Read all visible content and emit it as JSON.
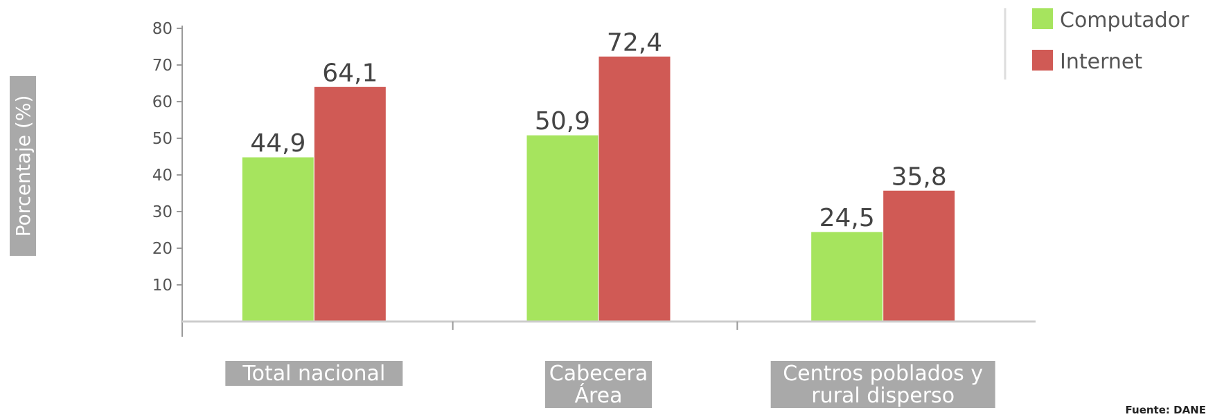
{
  "chart_data": {
    "type": "bar",
    "categories": [
      [
        "Total nacional"
      ],
      [
        "Cabecera",
        "Área"
      ],
      [
        "Centros poblados y",
        "rural disperso"
      ]
    ],
    "series": [
      {
        "name": "Computador",
        "values": [
          44.9,
          50.9,
          24.5
        ],
        "labels": [
          "44,9",
          "50,9",
          "24,5"
        ],
        "color": "#a6e45e"
      },
      {
        "name": "Internet",
        "values": [
          64.1,
          72.4,
          35.8
        ],
        "labels": [
          "64,1",
          "72,4",
          "35,8"
        ],
        "color": "#d05a55"
      }
    ],
    "ylabel": "Porcentaje (%)",
    "xlabel": "",
    "ylim": [
      0,
      80
    ],
    "yticks": [
      10,
      20,
      30,
      40,
      50,
      60,
      70,
      80
    ],
    "legend_position": "top-right",
    "grid": false,
    "source": "Fuente: DANE"
  },
  "colors": {
    "label_box": "#a9a9a9",
    "axis": "#9a9a9a",
    "baseline": "#cccccc"
  }
}
